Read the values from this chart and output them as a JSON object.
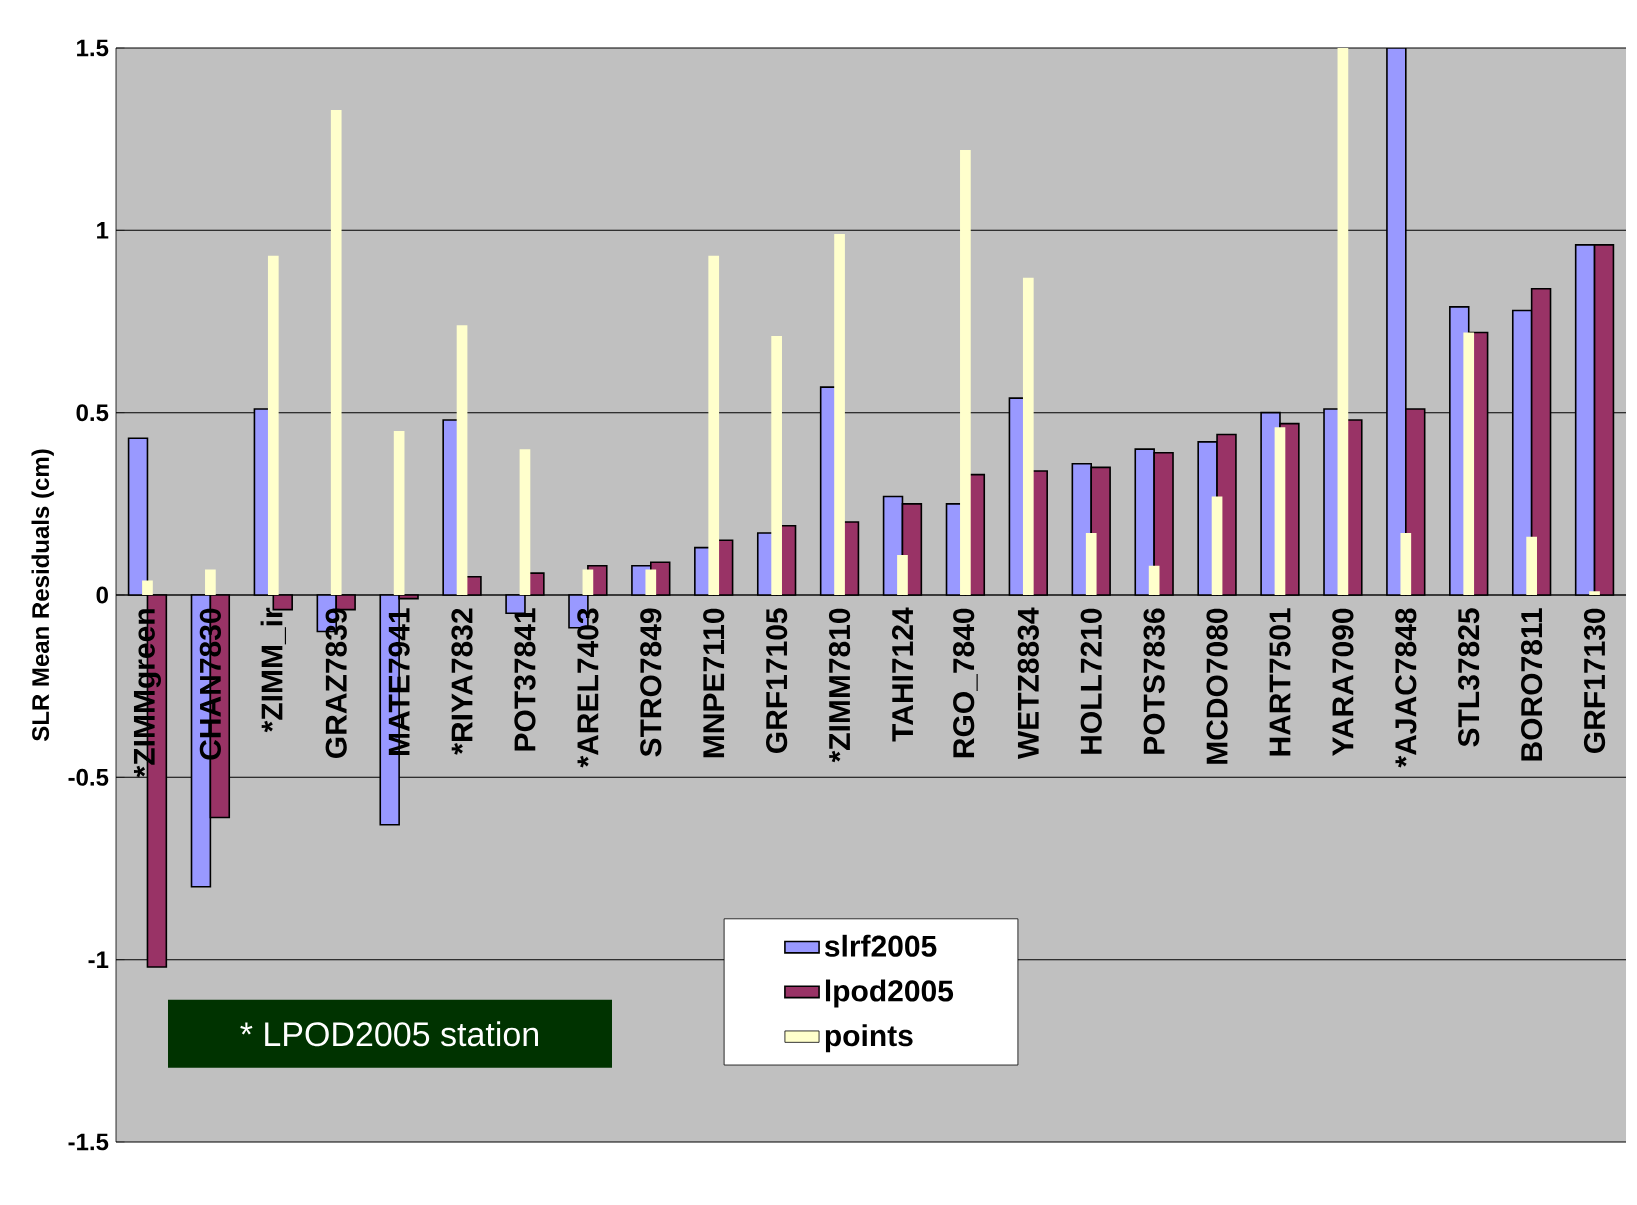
{
  "chart_data": {
    "type": "bar",
    "ylabel": "SLR Mean Residuals (cm)",
    "categories": [
      "*ZIMMgreen",
      "CHAN7830",
      "*ZIMM_ir",
      "GRAZ7839",
      "MATE7941",
      "*RIYA7832",
      "POT37841",
      "*AREL7403",
      "STRO7849",
      "MNPE7110",
      "GRF17105",
      "*ZIMM7810",
      "TAHI7124",
      "RGO_7840",
      "WETZ8834",
      "HOLL7210",
      "POTS7836",
      "MCDO7080",
      "HART7501",
      "YARA7090",
      "*AJAC7848",
      "STL37825",
      "BORO7811",
      "GRF17130"
    ],
    "series": [
      {
        "name": "slrf2005",
        "color": "#9999ff",
        "values": [
          0.43,
          -0.8,
          0.51,
          -0.1,
          -0.63,
          0.48,
          -0.05,
          -0.09,
          0.08,
          0.13,
          0.17,
          0.57,
          0.27,
          0.25,
          0.54,
          0.36,
          0.4,
          0.42,
          0.5,
          0.51,
          1.5,
          0.79,
          0.78,
          0.96
        ]
      },
      {
        "name": "lpod2005",
        "color": "#993366",
        "values": [
          -1.02,
          -0.61,
          -0.04,
          -0.04,
          -0.01,
          0.05,
          0.06,
          0.08,
          0.09,
          0.15,
          0.19,
          0.2,
          0.25,
          0.33,
          0.34,
          0.35,
          0.39,
          0.44,
          0.47,
          0.48,
          0.51,
          0.72,
          0.84,
          0.96
        ]
      },
      {
        "name": "points",
        "color": "#ffffcc",
        "values": [
          0.04,
          0.07,
          0.93,
          1.33,
          0.45,
          0.74,
          0.4,
          0.07,
          0.07,
          0.93,
          0.71,
          0.99,
          0.11,
          1.22,
          0.87,
          0.17,
          0.08,
          0.27,
          0.46,
          1.5,
          0.17,
          0.72,
          0.16,
          0.01
        ]
      }
    ],
    "ylim": [
      -1.5,
      1.5
    ],
    "yticks": [
      -1.5,
      -1,
      -0.5,
      0,
      0.5,
      1,
      1.5
    ],
    "grid": "y",
    "legend": "bottom",
    "annotations": [
      "* LPOD2005 station"
    ]
  }
}
